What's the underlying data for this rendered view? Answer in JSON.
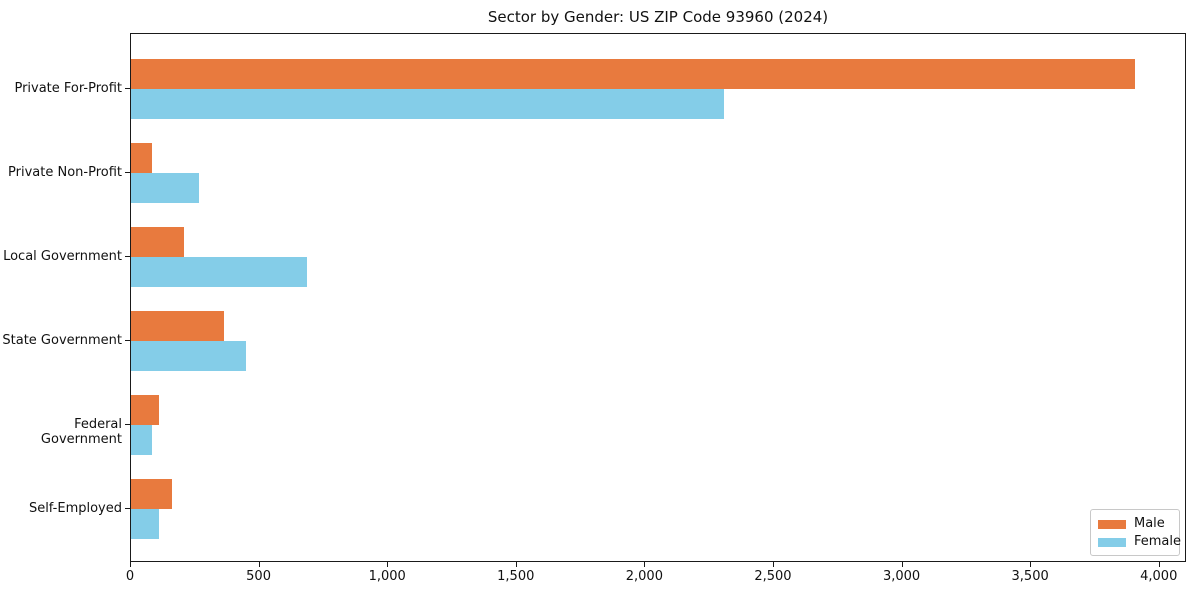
{
  "chart_data": {
    "type": "bar",
    "orientation": "horizontal",
    "title": "Sector by Gender: US ZIP Code 93960 (2024)",
    "categories": [
      "Private For-Profit",
      "Private Non-Profit",
      "Local Government",
      "State Government",
      "Federal Government",
      "Self-Employed"
    ],
    "series": [
      {
        "name": "Male",
        "color": "#e87a3e",
        "values": [
          3912,
          81,
          207,
          361,
          108,
          160
        ]
      },
      {
        "name": "Female",
        "color": "#84cde8",
        "values": [
          2311,
          264,
          687,
          447,
          80,
          110
        ]
      }
    ],
    "xlabel": "",
    "ylabel": "",
    "xlim": [
      0,
      4106
    ],
    "xticks": [
      0,
      500,
      1000,
      1500,
      2000,
      2500,
      3000,
      3500,
      4000
    ],
    "xtick_labels": [
      "0",
      "500",
      "1,000",
      "1,500",
      "2,000",
      "2,500",
      "3,000",
      "3,500",
      "4,000"
    ],
    "grid": false,
    "legend": {
      "position": "lower right",
      "items": [
        "Male",
        "Female"
      ]
    },
    "colors": {
      "spine": "#1a1a1a",
      "legend_border": "#c8c8c8",
      "text": "#111111"
    }
  }
}
